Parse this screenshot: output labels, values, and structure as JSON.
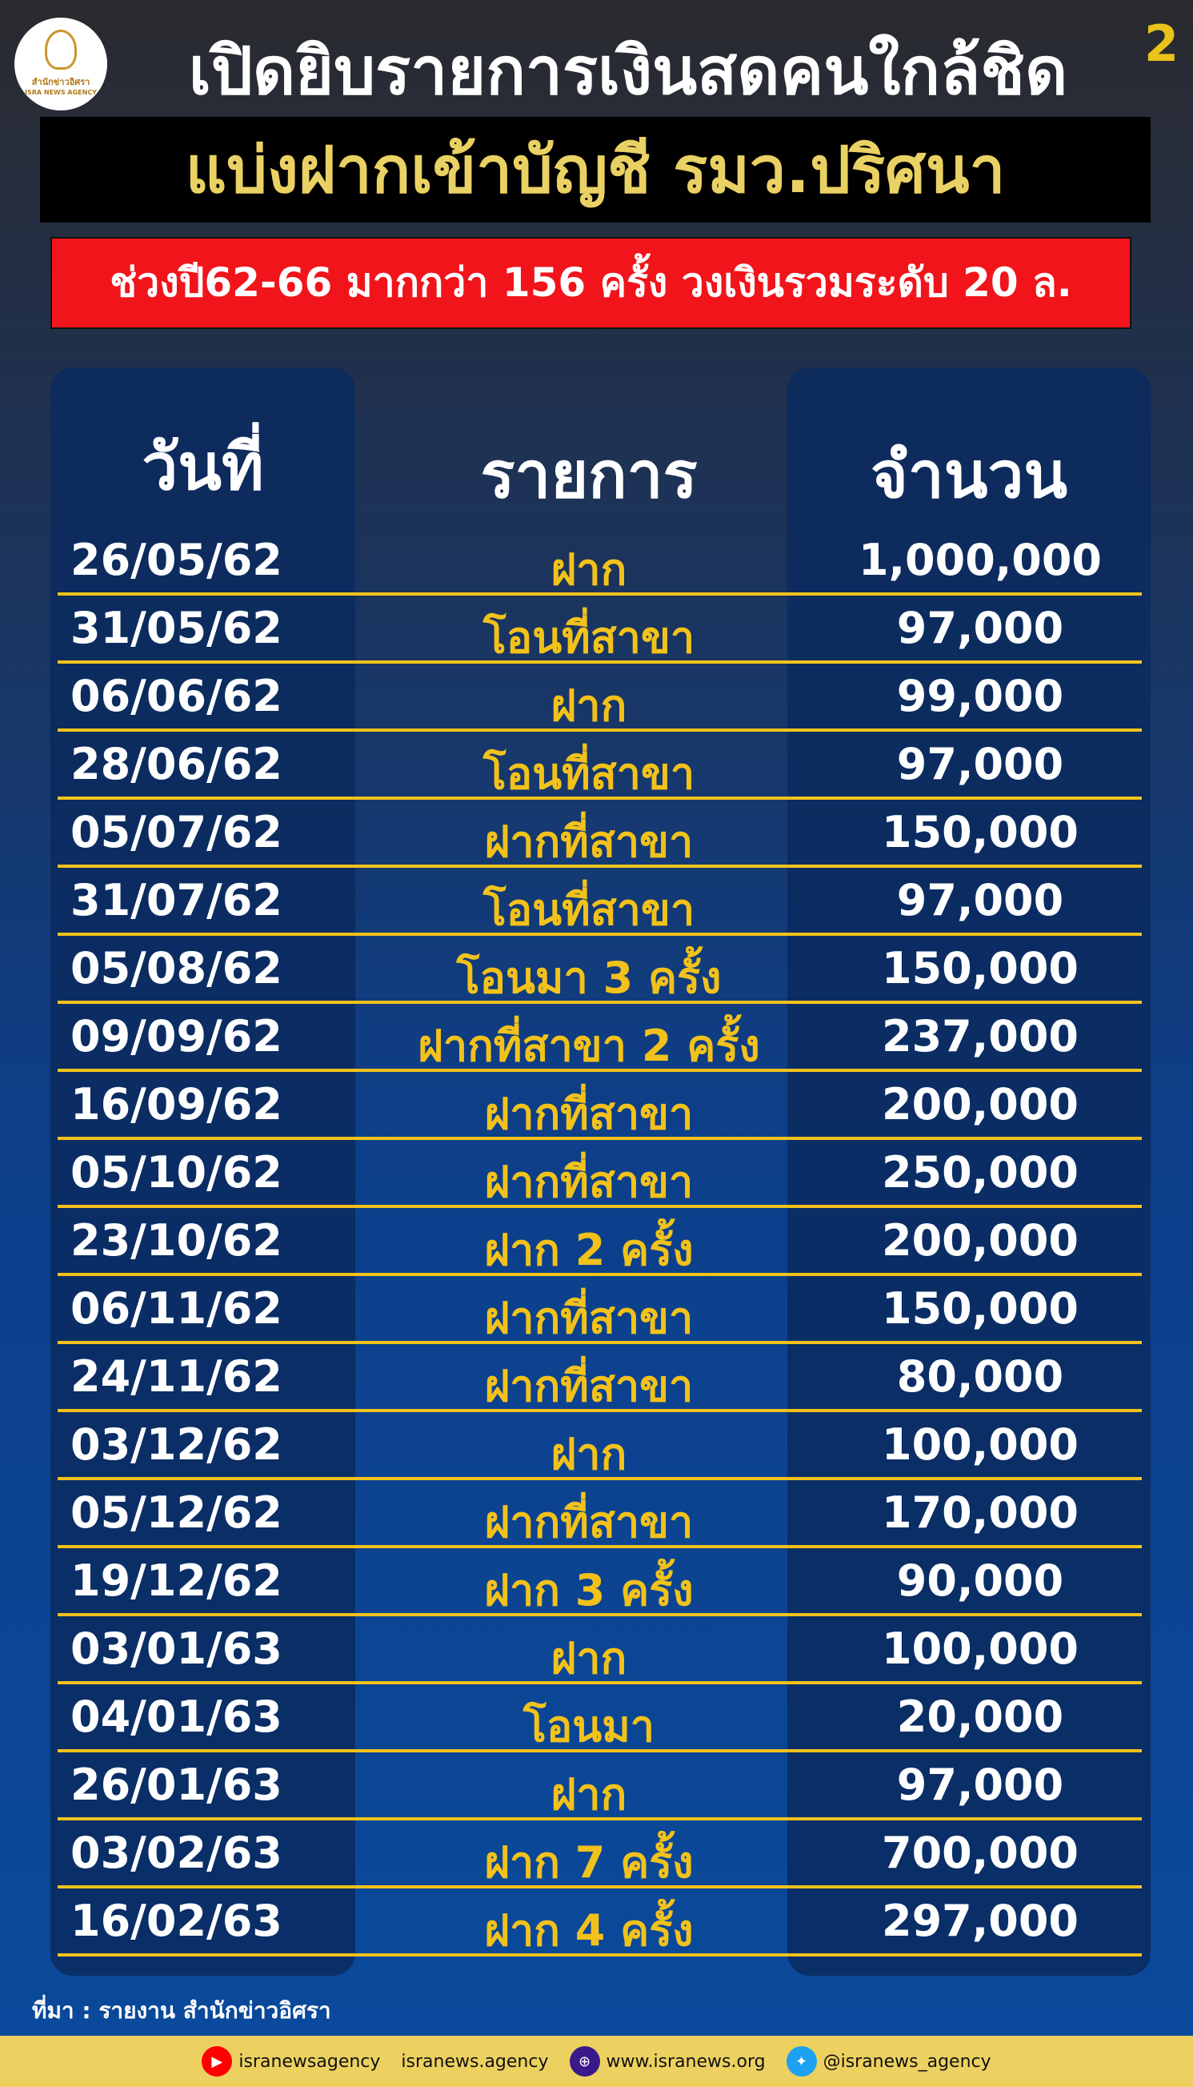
{
  "header": {
    "logo_text": "สำนักข่าวอิศรา",
    "logo_sub": "ISRA NEWS AGENCY",
    "title": "เปิดยิบรายการเงินสดคนใกล้ชิด",
    "page_number": "2",
    "subtitle": "แบ่งฝากเข้าบัญชี รมว.ปริศนา",
    "summary": "ช่วงปี62-66 มากกว่า 156 ครั้ง วงเงินรวมระดับ 20 ล."
  },
  "table": {
    "columns": [
      "วันที่",
      "รายการ",
      "จำนวน"
    ],
    "rows": [
      [
        "26/05/62",
        "ฝาก",
        "1,000,000"
      ],
      [
        "31/05/62",
        "โอนที่สาขา",
        "97,000"
      ],
      [
        "06/06/62",
        "ฝาก",
        "99,000"
      ],
      [
        "28/06/62",
        "โอนที่สาขา",
        "97,000"
      ],
      [
        "05/07/62",
        "ฝากที่สาขา",
        "150,000"
      ],
      [
        "31/07/62",
        "โอนที่สาขา",
        "97,000"
      ],
      [
        "05/08/62",
        "โอนมา 3 ครั้ง",
        "150,000"
      ],
      [
        "09/09/62",
        "ฝากที่สาขา 2 ครั้ง",
        "237,000"
      ],
      [
        "16/09/62",
        "ฝากที่สาขา",
        "200,000"
      ],
      [
        "05/10/62",
        "ฝากที่สาขา",
        "250,000"
      ],
      [
        "23/10/62",
        "ฝาก 2 ครั้ง",
        "200,000"
      ],
      [
        "06/11/62",
        "ฝากที่สาขา",
        "150,000"
      ],
      [
        "24/11/62",
        "ฝากที่สาขา",
        "80,000"
      ],
      [
        "03/12/62",
        "ฝาก",
        "100,000"
      ],
      [
        "05/12/62",
        "ฝากที่สาขา",
        "170,000"
      ],
      [
        "19/12/62",
        "ฝาก 3 ครั้ง",
        "90,000"
      ],
      [
        "03/01/63",
        "ฝาก",
        "100,000"
      ],
      [
        "04/01/63",
        "โอนมา",
        "20,000"
      ],
      [
        "26/01/63",
        "ฝาก",
        "97,000"
      ],
      [
        "03/02/63",
        "ฝาก 7 ครั้ง",
        "700,000"
      ],
      [
        "16/02/63",
        "ฝาก 4 ครั้ง",
        "297,000"
      ]
    ]
  },
  "source": "ที่มา : รายงาน สำนักข่าวอิศรา",
  "footer": {
    "youtube": "isranewsagency",
    "facebook": "isranews.agency",
    "website": "www.isranews.org",
    "twitter": "@isranews_agency"
  },
  "colors": {
    "accent_yellow": "#f2c21b",
    "red": "#f1141b",
    "footer": "#ecd160"
  }
}
